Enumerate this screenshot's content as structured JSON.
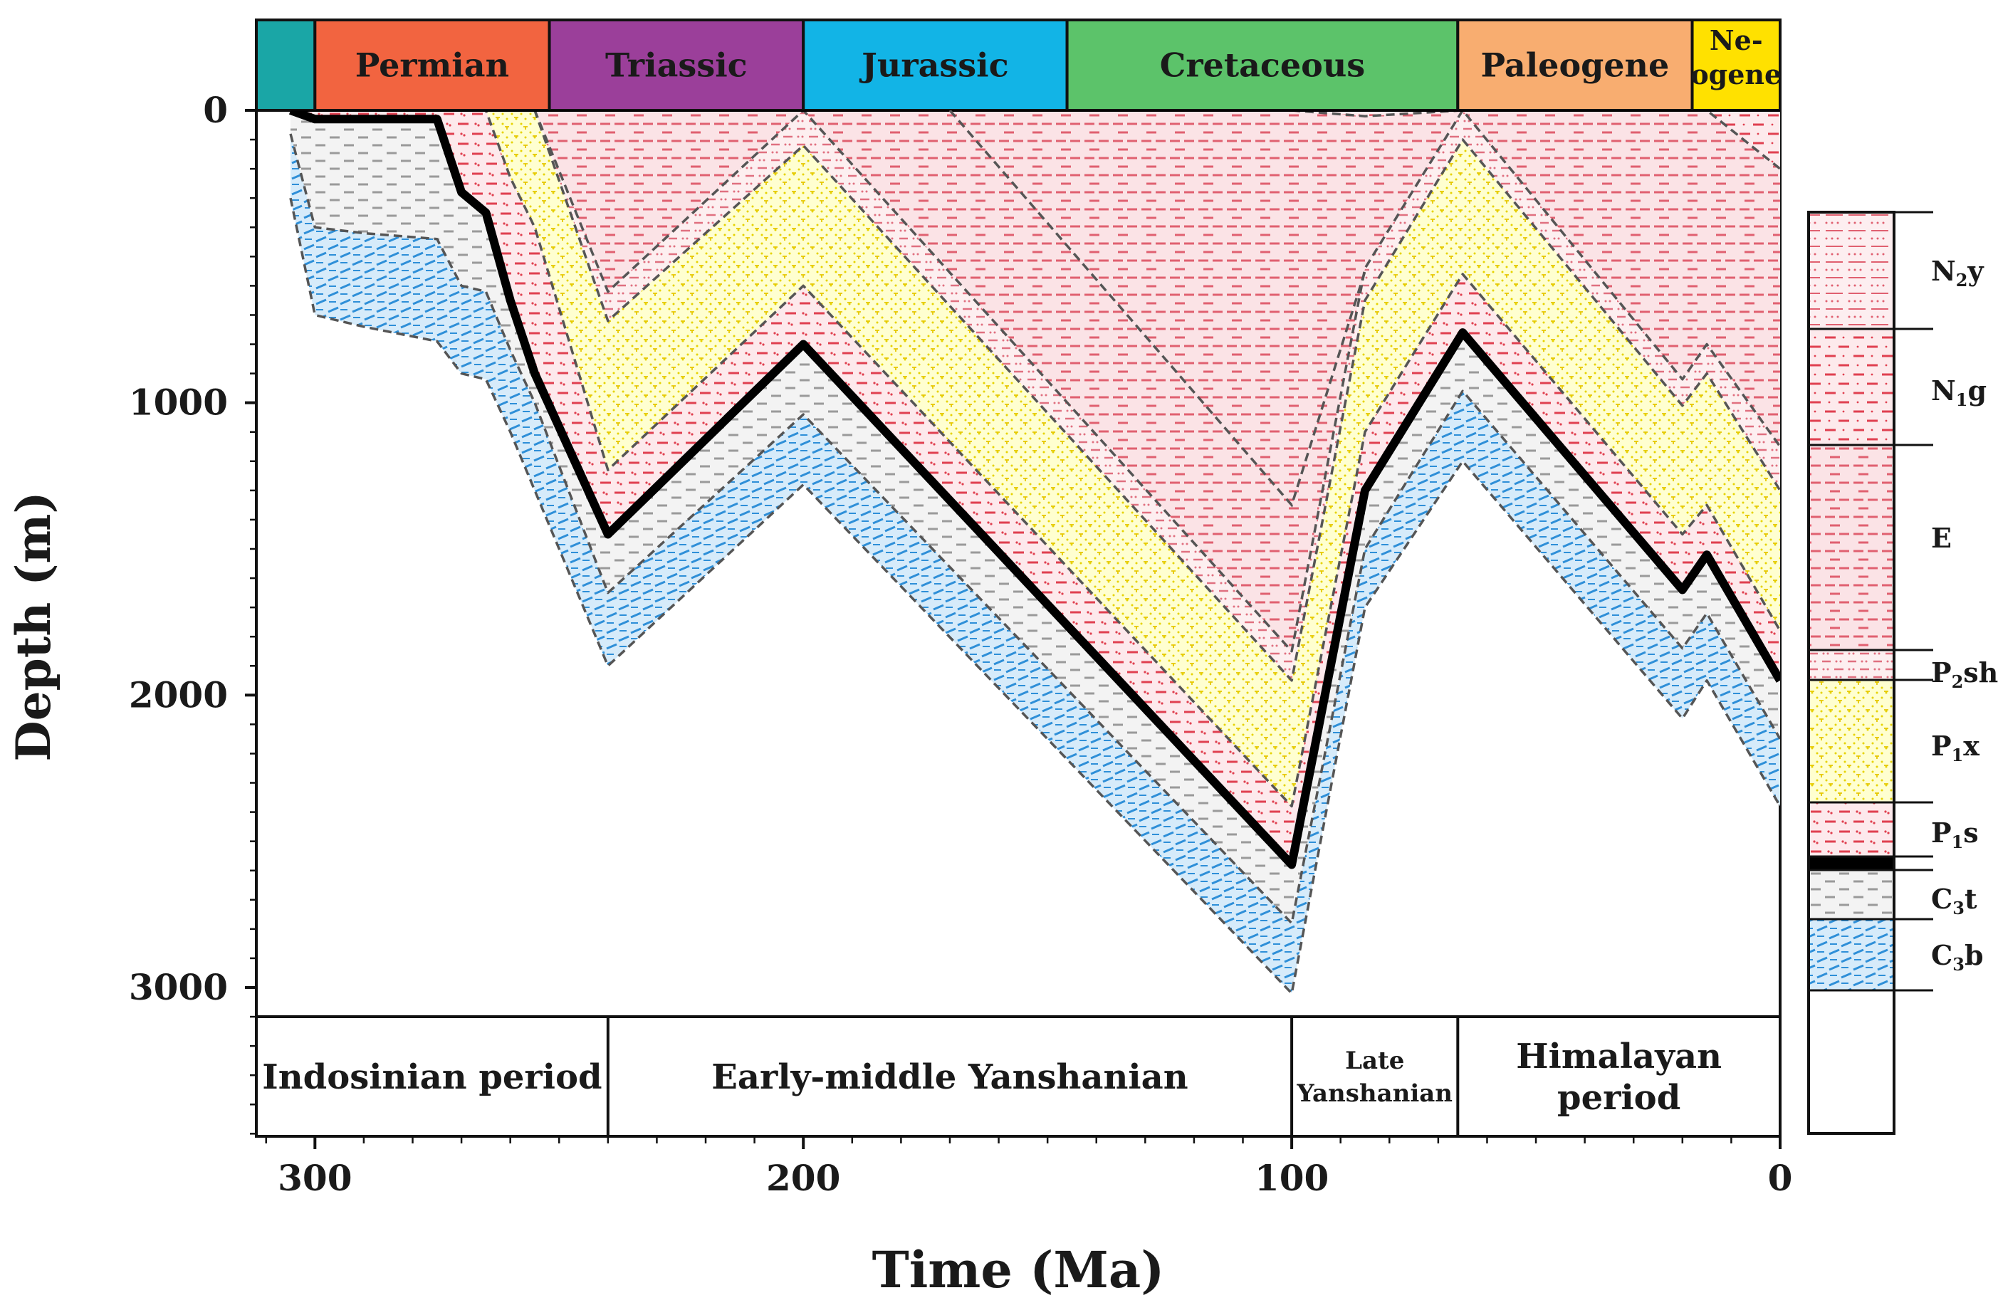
{
  "chart_data": {
    "type": "area",
    "title": "",
    "xlabel": "Time (Ma)",
    "ylabel": "Depth (m)",
    "xlim": [
      312,
      0
    ],
    "ylim": [
      0,
      3500
    ],
    "x_ticks": [
      {
        "value": 300,
        "label": "300"
      },
      {
        "value": 200,
        "label": "200"
      },
      {
        "value": 100,
        "label": "100"
      },
      {
        "value": 0,
        "label": "0"
      }
    ],
    "y_ticks": [
      {
        "value": 0,
        "label": "0"
      },
      {
        "value": 1000,
        "label": "1000"
      },
      {
        "value": 2000,
        "label": "2000"
      },
      {
        "value": 3000,
        "label": "3000"
      }
    ],
    "geologic_periods": [
      {
        "name": "",
        "start": 312,
        "end": 300,
        "color": "#1aa6a6"
      },
      {
        "name": "Permian",
        "start": 300,
        "end": 252,
        "color": "#f26440"
      },
      {
        "name": "Triassic",
        "start": 252,
        "end": 200,
        "color": "#9b3f9a"
      },
      {
        "name": "Jurassic",
        "start": 200,
        "end": 146,
        "color": "#12b4e6"
      },
      {
        "name": "Cretaceous",
        "start": 146,
        "end": 66,
        "color": "#5cc36a"
      },
      {
        "name": "Paleogene",
        "start": 66,
        "end": 18,
        "color": "#f8ad70"
      },
      {
        "name_lines": [
          "Ne-",
          "ogene"
        ],
        "start": 18,
        "end": 0,
        "color": "#ffe100"
      }
    ],
    "tectonic_periods": [
      {
        "name_lines": [
          "Indosinian period"
        ],
        "start": 312,
        "end": 240
      },
      {
        "name_lines": [
          "Early-middle Yanshanian"
        ],
        "start": 240,
        "end": 100
      },
      {
        "name_lines": [
          "Late",
          "Yanshanian"
        ],
        "start": 100,
        "end": 66
      },
      {
        "name_lines": [
          "Himalayan",
          "period"
        ],
        "start": 66,
        "end": 0
      }
    ],
    "times": [
      305,
      300,
      290,
      275,
      270,
      265,
      260,
      255,
      240,
      200,
      100,
      85,
      65,
      20,
      15,
      0
    ],
    "horizons": [
      {
        "name": "C3b base",
        "depths": [
          300,
          700,
          740,
          790,
          900,
          920,
          1100,
          1300,
          1900,
          1280,
          3020,
          1700,
          1200,
          2080,
          1950,
          2380
        ]
      },
      {
        "name": "C3b top",
        "depths": [
          80,
          400,
          420,
          440,
          600,
          620,
          820,
          1000,
          1650,
          1040,
          2780,
          1500,
          960,
          1840,
          1720,
          2150
        ]
      },
      {
        "name": "C3t top",
        "depths": [
          0,
          30,
          30,
          30,
          280,
          350,
          650,
          900,
          1450,
          800,
          2580,
          1300,
          760,
          1640,
          1520,
          1950
        ]
      },
      {
        "name": "P1s top",
        "depths": [
          0,
          0,
          0,
          0,
          0,
          0,
          230,
          400,
          1230,
          600,
          2380,
          1100,
          560,
          1450,
          1350,
          1780
        ]
      },
      {
        "name": "P1x top",
        "depths": [
          0,
          0,
          0,
          0,
          0,
          0,
          0,
          0,
          720,
          120,
          1950,
          650,
          100,
          1010,
          900,
          1300
        ]
      },
      {
        "name": "P2sh top",
        "depths": [
          0,
          0,
          0,
          0,
          0,
          0,
          0,
          0,
          620,
          0,
          1850,
          540,
          0,
          920,
          800,
          1150
        ]
      },
      {
        "name": "E top",
        "depths": [
          0,
          0,
          0,
          0,
          0,
          0,
          0,
          0,
          0,
          0,
          0,
          20,
          0,
          0,
          0,
          200
        ]
      },
      {
        "name": "N1g top",
        "depths": [
          0,
          0,
          0,
          0,
          0,
          0,
          0,
          0,
          0,
          0,
          0,
          0,
          0,
          0,
          0,
          0
        ]
      }
    ],
    "layers": [
      {
        "key": "C3b",
        "lower": 0,
        "upper": 1,
        "pattern": "c3b"
      },
      {
        "key": "C3t",
        "lower": 1,
        "upper": 2,
        "pattern": "c3t"
      },
      {
        "key": "P1s",
        "lower": 2,
        "upper": 3,
        "pattern": "p1s"
      },
      {
        "key": "P1x",
        "lower": 3,
        "upper": 4,
        "pattern": "p1x"
      },
      {
        "key": "P2sh",
        "lower": 4,
        "upper": 5,
        "pattern": "p2sh"
      },
      {
        "key": "E",
        "lower": 5,
        "upper": 6,
        "pattern": "e"
      },
      {
        "key": "N1g",
        "lower": 6,
        "upper": 7,
        "pattern": "n1g"
      }
    ],
    "coal_seam_horizon": 2,
    "extra_dashed_lines": [
      {
        "name": "Cretaceous internal surface",
        "times": [
          170,
          100,
          85
        ],
        "depths": [
          0,
          1350,
          550
        ]
      }
    ],
    "legend": [
      {
        "key": "N2y",
        "base": "N",
        "sub": "2",
        "rest": "y",
        "pattern": "n2y"
      },
      {
        "key": "N1g",
        "base": "N",
        "sub": "1",
        "rest": "g",
        "pattern": "n1g"
      },
      {
        "key": "E",
        "base": "E",
        "sub": "",
        "rest": "",
        "pattern": "e"
      },
      {
        "key": "P2sh",
        "base": "P",
        "sub": "2",
        "rest": "sh",
        "pattern": "p2sh"
      },
      {
        "key": "P1x",
        "base": "P",
        "sub": "1",
        "rest": "x",
        "pattern": "p1x"
      },
      {
        "key": "P1s",
        "base": "P",
        "sub": "1",
        "rest": "s",
        "pattern": "p1s"
      },
      {
        "key": "coal",
        "base": "",
        "sub": "",
        "rest": "",
        "pattern": "coal"
      },
      {
        "key": "C3t",
        "base": "C",
        "sub": "3",
        "rest": "t",
        "pattern": "c3t"
      },
      {
        "key": "C3b",
        "base": "C",
        "sub": "3",
        "rest": "b",
        "pattern": "c3b"
      },
      {
        "key": "basement",
        "base": "",
        "sub": "",
        "rest": "",
        "pattern": "white"
      }
    ],
    "colors": {
      "c3b": "#2e8fd8",
      "c3t": "#9a9a9a",
      "p1s": "#e04050",
      "p1x": "#f2e600",
      "p2sh": "#e88a8a",
      "e": "#e06070",
      "n1g": "#e04050",
      "coal": "#000000"
    }
  }
}
